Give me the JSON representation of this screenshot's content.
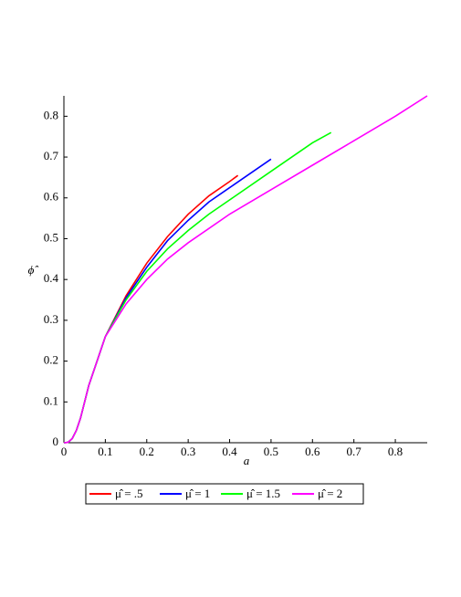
{
  "chart_data": {
    "type": "line",
    "xlabel": "a",
    "ylabel": "ϕ̂",
    "xlim": [
      0,
      0.877
    ],
    "ylim": [
      0,
      0.85
    ],
    "xticks": [
      0,
      0.1,
      0.2,
      0.3,
      0.4,
      0.5,
      0.6,
      0.7,
      0.8
    ],
    "yticks": [
      0,
      0.1,
      0.2,
      0.3,
      0.4,
      0.5,
      0.6,
      0.7,
      0.8
    ],
    "legend": "bottom",
    "series": [
      {
        "name": "μ̂ = .5",
        "color": "#ff0000",
        "x": [
          0,
          0.01,
          0.02,
          0.03,
          0.04,
          0.05,
          0.06,
          0.08,
          0.1,
          0.15,
          0.2,
          0.25,
          0.3,
          0.35,
          0.4,
          0.42
        ],
        "values": [
          0,
          0.001,
          0.01,
          0.03,
          0.06,
          0.1,
          0.14,
          0.2,
          0.26,
          0.36,
          0.44,
          0.505,
          0.56,
          0.605,
          0.64,
          0.655
        ]
      },
      {
        "name": "μ̂ = 1",
        "color": "#0000ff",
        "x": [
          0,
          0.01,
          0.02,
          0.03,
          0.04,
          0.05,
          0.06,
          0.08,
          0.1,
          0.15,
          0.2,
          0.25,
          0.3,
          0.35,
          0.4,
          0.45,
          0.5
        ],
        "values": [
          0,
          0.001,
          0.01,
          0.03,
          0.06,
          0.1,
          0.14,
          0.2,
          0.26,
          0.355,
          0.43,
          0.495,
          0.545,
          0.59,
          0.625,
          0.66,
          0.695
        ]
      },
      {
        "name": "μ̂ = 1.5",
        "color": "#00ff00",
        "x": [
          0,
          0.01,
          0.02,
          0.03,
          0.04,
          0.05,
          0.06,
          0.08,
          0.1,
          0.15,
          0.2,
          0.25,
          0.3,
          0.35,
          0.4,
          0.5,
          0.6,
          0.645
        ],
        "values": [
          0,
          0.001,
          0.01,
          0.03,
          0.06,
          0.1,
          0.14,
          0.2,
          0.26,
          0.35,
          0.42,
          0.475,
          0.52,
          0.56,
          0.595,
          0.665,
          0.735,
          0.76
        ]
      },
      {
        "name": "μ̂ = 2",
        "color": "#ff00ff",
        "x": [
          0,
          0.01,
          0.02,
          0.03,
          0.04,
          0.05,
          0.06,
          0.08,
          0.1,
          0.15,
          0.2,
          0.25,
          0.3,
          0.35,
          0.4,
          0.5,
          0.6,
          0.7,
          0.8,
          0.877
        ],
        "values": [
          0,
          0.001,
          0.01,
          0.03,
          0.06,
          0.1,
          0.14,
          0.2,
          0.26,
          0.34,
          0.4,
          0.45,
          0.49,
          0.525,
          0.56,
          0.62,
          0.68,
          0.74,
          0.8,
          0.85
        ]
      }
    ]
  }
}
